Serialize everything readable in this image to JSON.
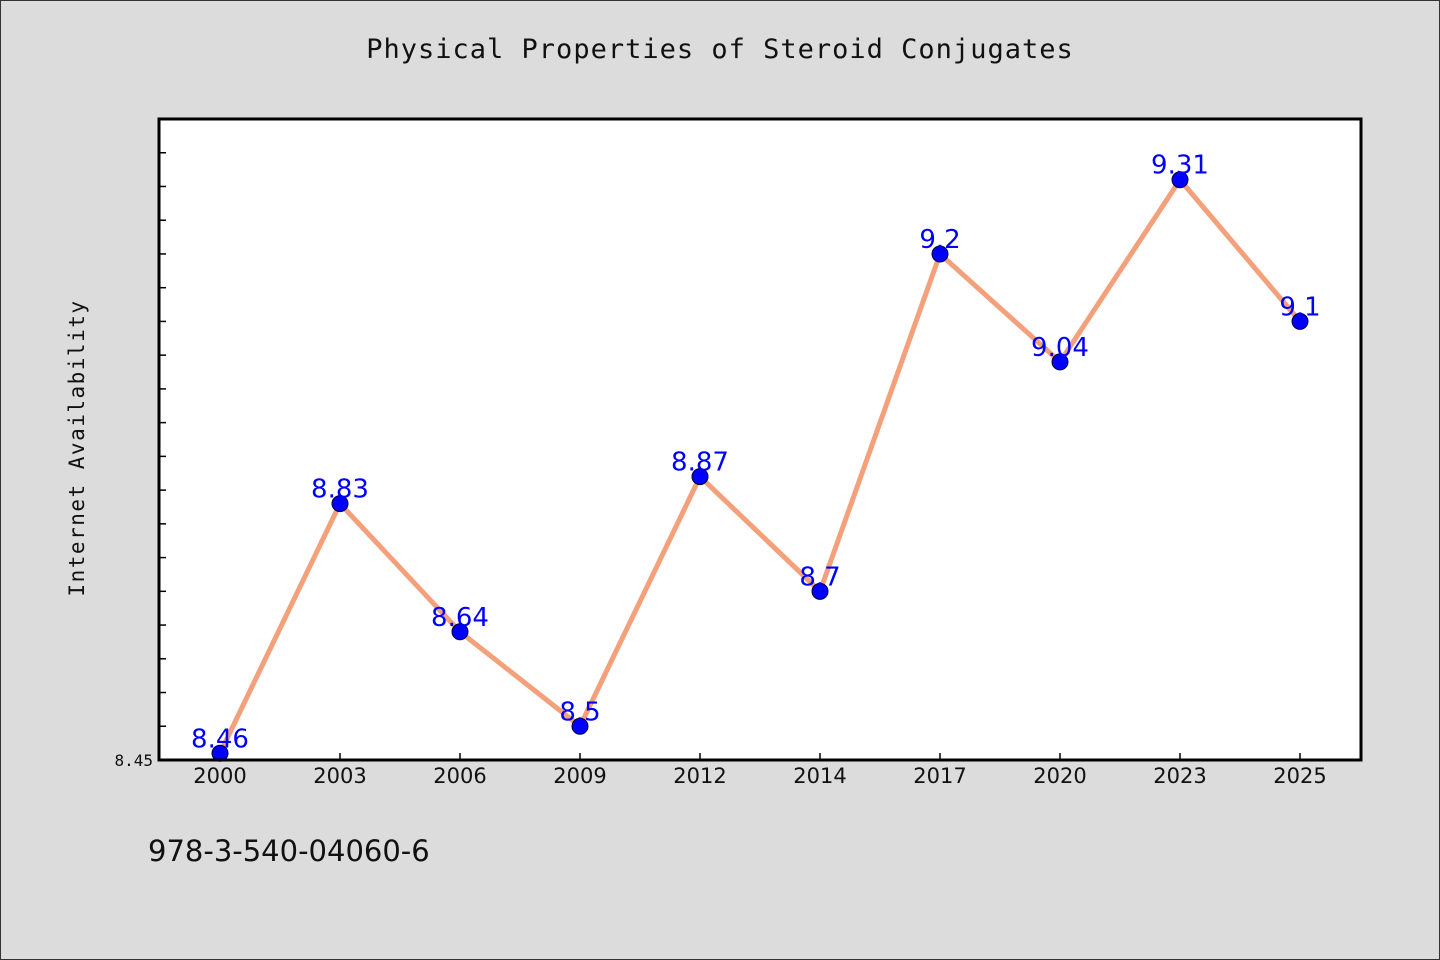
{
  "chart_data": {
    "type": "line",
    "title": "Physical Properties of Steroid Conjugates",
    "xlabel": "",
    "ylabel": "Internet Availability",
    "categories": [
      "2000",
      "2003",
      "2006",
      "2009",
      "2012",
      "2014",
      "2017",
      "2020",
      "2023",
      "2025"
    ],
    "series": [
      {
        "values": [
          8.46,
          8.83,
          8.64,
          8.5,
          8.87,
          8.7,
          9.2,
          9.04,
          9.31,
          9.1
        ],
        "data_labels": [
          "8.46",
          "8.83",
          "8.64",
          "8.5",
          "8.87",
          "8.7",
          "9.2",
          "9.04",
          "9.31",
          "9.1"
        ],
        "line_color": "#f4a07a",
        "marker_color": "#0000ff"
      }
    ],
    "y_tick_labels": [
      "8.45"
    ],
    "ylim": [
      8.45,
      9.4
    ],
    "grid": false,
    "legend": "none"
  },
  "footer": {
    "isbn": "978-3-540-04060-6"
  },
  "colors": {
    "background": "#dcdcdc",
    "plot_background": "#ffffff",
    "line": "#f4a07a",
    "marker": "#0000ff",
    "data_label": "#0000ff"
  }
}
